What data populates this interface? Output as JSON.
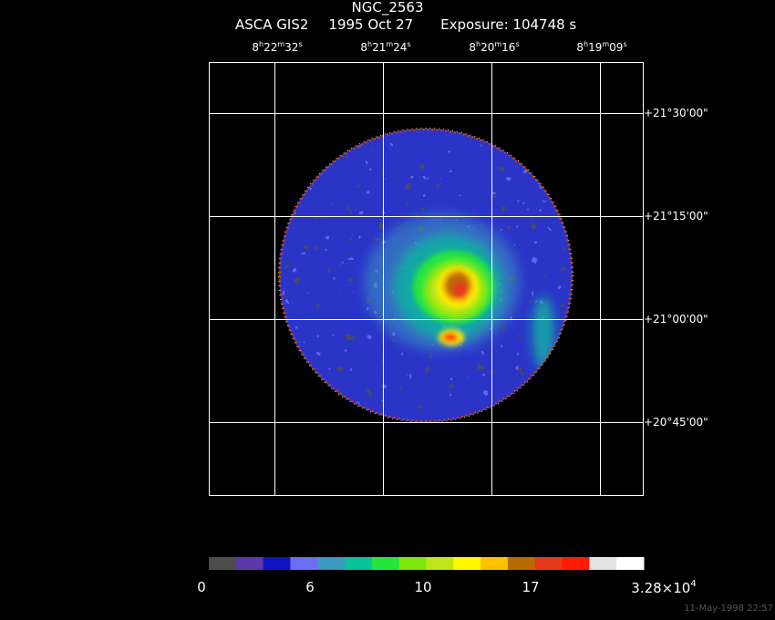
{
  "header": {
    "title": "NGC_2563",
    "instrument": "ASCA GIS2",
    "date": "1995 Oct 27",
    "exposure": "Exposure: 104748 s"
  },
  "ra_ticks": [
    {
      "h": "8",
      "m": "22",
      "s": "32"
    },
    {
      "h": "8",
      "m": "21",
      "s": "24"
    },
    {
      "h": "8",
      "m": "20",
      "s": "16"
    },
    {
      "h": "8",
      "m": "19",
      "s": "09"
    }
  ],
  "dec_ticks": [
    "+21°30'00\"",
    "+21°15'00\"",
    "+21°00'00\"",
    "+20°45'00\""
  ],
  "colorbar": {
    "colors": [
      "#4d4d4d",
      "#5a39a8",
      "#0e16c2",
      "#6b6ef0",
      "#3c98c0",
      "#0ac39a",
      "#28e43e",
      "#7ee80c",
      "#bfe418",
      "#fff700",
      "#ffc000",
      "#b86a00",
      "#e63a1c",
      "#ff1a00",
      "#e3e3e3",
      "#ffffff"
    ],
    "labels": [
      "0",
      "6",
      "10",
      "17"
    ],
    "max_label_base": "3.28×10",
    "max_label_exp": "4"
  },
  "footer": {
    "timestamp": "11-May-1998 22:57"
  }
}
